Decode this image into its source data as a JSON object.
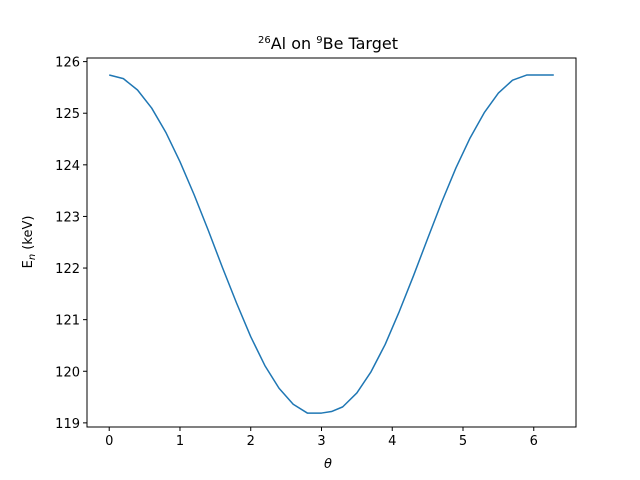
{
  "chart_data": {
    "type": "line",
    "title": {
      "iso1_mass": "26",
      "iso1_symbol": "Al on ",
      "iso2_mass": "9",
      "iso2_symbol": "Be Target"
    },
    "xlabel": "θ",
    "ylabel": {
      "main": "E",
      "sub": "n",
      "unit": " (keV)"
    },
    "xlim": [
      -0.314,
      6.597
    ],
    "ylim": [
      118.92,
      126.07
    ],
    "xticks": [
      0,
      1,
      2,
      3,
      4,
      5,
      6
    ],
    "yticks": [
      119,
      120,
      121,
      122,
      123,
      124,
      125,
      126
    ],
    "grid": false,
    "line_color": "#1f77b4",
    "series": [
      {
        "x": [
          0.0,
          0.2,
          0.4,
          0.6,
          0.8,
          1.0,
          1.2,
          1.4,
          1.6,
          1.8,
          2.0,
          2.2,
          2.4,
          2.6,
          2.8,
          3.0,
          3.1416,
          3.3,
          3.5,
          3.7,
          3.9,
          4.1,
          4.3,
          4.5,
          4.7,
          4.9,
          5.1,
          5.3,
          5.5,
          5.7,
          5.9,
          6.1,
          6.2832
        ],
        "y": [
          125.74,
          125.67,
          125.45,
          125.1,
          124.63,
          124.06,
          123.42,
          122.73,
          122.01,
          121.32,
          120.67,
          120.11,
          119.67,
          119.36,
          119.19,
          119.19,
          119.22,
          119.31,
          119.58,
          119.99,
          120.52,
          121.16,
          121.85,
          122.57,
          123.28,
          123.94,
          124.52,
          125.01,
          125.39,
          125.64,
          125.74,
          125.74,
          125.74
        ]
      }
    ]
  }
}
